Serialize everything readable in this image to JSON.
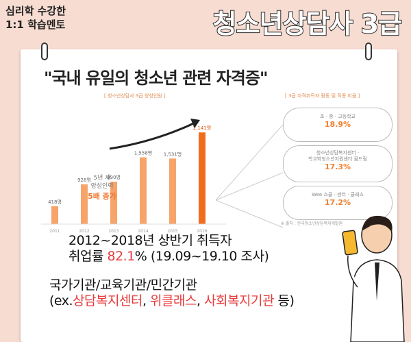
{
  "tag": {
    "line1": "심리학 수강한",
    "line2": "1:1 학습멘토"
  },
  "headline": "청소년상담사 3급",
  "quote": "\"국내 유일의 청소년 관련 자격증\"",
  "chart_caption": "[ 청소년상담사 3급 양성인원 ]",
  "bubble": {
    "line1": "5년 새",
    "line2": "양성인력",
    "line3": "5배 증가"
  },
  "chart_data": {
    "type": "bar",
    "categories": [
      "2011",
      "2012",
      "2013",
      "2014",
      "2015",
      "2016"
    ],
    "values": [
      418,
      928,
      990,
      1558,
      1531,
      2141
    ],
    "value_labels": [
      "418명",
      "928명",
      "990명",
      "1,558명",
      "1,531명",
      "2,141명"
    ],
    "ylim": [
      0,
      2400
    ],
    "color_low": "#f6a46a",
    "color_high": "#f06d1e"
  },
  "side_caption": "[ 3급 자격취득자 활동 및 직종 비율 ]",
  "pills": [
    {
      "text": "초 · 중 · 고등학교",
      "text2": "",
      "pct": "18.9%"
    },
    {
      "text": "청소년상담복지센터 ·",
      "text2": "학교밖청소년지원센터 꿈드림",
      "pct": "17.3%"
    },
    {
      "text": "Wee 스쿨 · 센터 · 클래스",
      "text2": "",
      "pct": "17.2%"
    }
  ],
  "source": "※ 출처 : 한국청소년상담복지개발원",
  "para1": {
    "line1": "2012~2018년 상반기 취득자",
    "pre": "취업률 ",
    "rate": "82.1",
    "post": "% (19.09~19.10 조사)"
  },
  "para2": {
    "line1": "국가기관/교육기관/민간기관",
    "pre": "(ex.",
    "red1": "상담복지센터",
    "sep1": ", ",
    "red2": "위클래스",
    "sep2": ", ",
    "red3": "사회복지기관",
    "post": " 등)"
  }
}
